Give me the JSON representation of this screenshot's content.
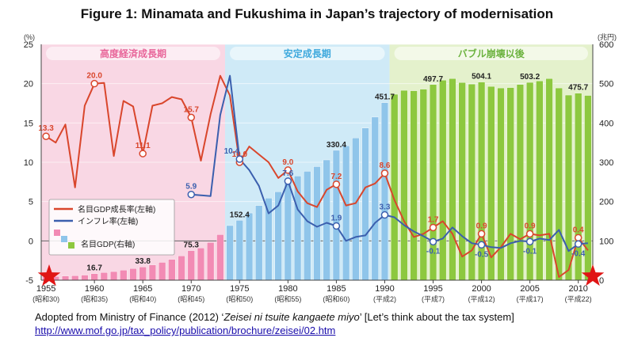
{
  "title": "Figure 1: Minamata and Fukushima in Japan’s trajectory of modernisation",
  "source": {
    "prefix": "Adopted from Ministry of Finance (2012) ‘",
    "italic": "Zeisei ni tsuite kangaete miyo",
    "suffix": "’ [Let’s think about the tax system]",
    "url": "http://www.mof.go.jp/tax_policy/publication/brochure/zeisei/02.htm"
  },
  "colors": {
    "period1_bg": "#f9d7e4",
    "period2_bg": "#cfeaf7",
    "period3_bg": "#e4f1cc",
    "period1_label": "#e8669a",
    "period2_label": "#3fa9dd",
    "period3_label": "#6cb33f",
    "gdp_growth": "#d9462c",
    "inflation": "#3b5fae",
    "bar_pink": "#f28bb4",
    "bar_blue": "#8fc5ea",
    "bar_green": "#8dc83f",
    "star": "#e01515",
    "title": "#111111"
  },
  "chart_data": {
    "type": "line",
    "left_unit": "(%)",
    "right_unit": "(兆円)",
    "ylim_left": [
      -5,
      25
    ],
    "ylim_right": [
      0,
      600
    ],
    "left_ticks": [
      "-5",
      "0",
      "5",
      "10",
      "15",
      "20",
      "25"
    ],
    "right_ticks": [
      "0",
      "100",
      "200",
      "300",
      "400",
      "500",
      "600"
    ],
    "x_ticks": [
      {
        "year": 1955,
        "era": "(昭和30)"
      },
      {
        "year": 1960,
        "era": "(昭和35)"
      },
      {
        "year": 1965,
        "era": "(昭和40)"
      },
      {
        "year": 1970,
        "era": "(昭和45)"
      },
      {
        "year": 1975,
        "era": "(昭和50)"
      },
      {
        "year": 1980,
        "era": "(昭和55)"
      },
      {
        "year": 1985,
        "era": "(昭和60)"
      },
      {
        "year": 1990,
        "era": "(平成2)"
      },
      {
        "year": 1995,
        "era": "(平成7)"
      },
      {
        "year": 2000,
        "era": "(平成12)"
      },
      {
        "year": 2005,
        "era": "(平成17)"
      },
      {
        "year": 2010,
        "era": "(平成22)"
      }
    ],
    "periods": [
      {
        "label": "高度経済成長期",
        "from": 1954.5,
        "to": 1973.5
      },
      {
        "label": "安定成長期",
        "from": 1973.5,
        "to": 1990.5
      },
      {
        "label": "バブル崩壊以後",
        "from": 1990.5,
        "to": 2011.5
      }
    ],
    "legend": {
      "gdp_growth": "名目GDP成長率(左軸)",
      "inflation": "インフレ率(左軸)",
      "gdp": "名目GDP(右軸)"
    },
    "series": [
      {
        "key": "gdp_growth",
        "name": "名目GDP成長率(左軸)",
        "axis": "left",
        "x": [
          1955,
          1956,
          1957,
          1958,
          1959,
          1960,
          1961,
          1962,
          1963,
          1964,
          1965,
          1966,
          1967,
          1968,
          1969,
          1970,
          1971,
          1972,
          1973,
          1974,
          1975,
          1976,
          1977,
          1978,
          1979,
          1980,
          1981,
          1982,
          1983,
          1984,
          1985,
          1986,
          1987,
          1988,
          1989,
          1990,
          1991,
          1992,
          1993,
          1994,
          1995,
          1996,
          1997,
          1998,
          1999,
          2000,
          2001,
          2002,
          2003,
          2004,
          2005,
          2006,
          2007,
          2008,
          2009,
          2010,
          2011
        ],
        "y": [
          13.3,
          12.5,
          14.8,
          6.8,
          17.2,
          20.0,
          20.1,
          10.8,
          17.8,
          17.1,
          11.1,
          17.2,
          17.5,
          18.3,
          18.0,
          15.7,
          10.2,
          16.1,
          21.0,
          18.5,
          10.0,
          12.0,
          11.0,
          10.0,
          8.0,
          9.0,
          6.3,
          4.8,
          4.3,
          6.5,
          7.2,
          4.5,
          4.8,
          6.8,
          7.3,
          8.6,
          5.2,
          2.5,
          0.5,
          0.9,
          1.7,
          2.5,
          0.9,
          -2.0,
          -1.2,
          0.9,
          -2.1,
          -0.8,
          0.9,
          0.2,
          0.9,
          0.7,
          0.9,
          -4.6,
          -3.7,
          0.4,
          -1.2
        ]
      },
      {
        "key": "inflation",
        "name": "インフレ率(左軸)",
        "axis": "left",
        "x": [
          1970,
          1971,
          1972,
          1973,
          1974,
          1975,
          1976,
          1977,
          1978,
          1979,
          1980,
          1981,
          1982,
          1983,
          1984,
          1985,
          1986,
          1987,
          1988,
          1989,
          1990,
          1991,
          1992,
          1993,
          1994,
          1995,
          1996,
          1997,
          1998,
          1999,
          2000,
          2001,
          2002,
          2003,
          2004,
          2005,
          2006,
          2007,
          2008,
          2009,
          2010,
          2011
        ],
        "y": [
          5.9,
          5.8,
          5.7,
          16.0,
          21.0,
          10.4,
          9.0,
          7.0,
          3.5,
          4.5,
          7.6,
          4.0,
          2.5,
          1.8,
          2.3,
          1.9,
          0.0,
          0.5,
          0.7,
          2.3,
          3.3,
          3.0,
          2.0,
          1.2,
          0.6,
          -0.1,
          0.3,
          1.7,
          0.6,
          -0.3,
          -0.5,
          -0.8,
          -0.9,
          -0.3,
          0.0,
          -0.1,
          0.3,
          0.1,
          1.4,
          -1.3,
          -0.4,
          -0.3
        ]
      }
    ],
    "bars": {
      "name": "名目GDP(右軸)",
      "axis": "right",
      "x": [
        1955,
        1956,
        1957,
        1958,
        1959,
        1960,
        1961,
        1962,
        1963,
        1964,
        1965,
        1966,
        1967,
        1968,
        1969,
        1970,
        1971,
        1972,
        1973,
        1974,
        1975,
        1976,
        1977,
        1978,
        1979,
        1980,
        1981,
        1982,
        1983,
        1984,
        1985,
        1986,
        1987,
        1988,
        1989,
        1990,
        1991,
        1992,
        1993,
        1994,
        1995,
        1996,
        1997,
        1998,
        1999,
        2000,
        2001,
        2002,
        2003,
        2004,
        2005,
        2006,
        2007,
        2008,
        2009,
        2010,
        2011
      ],
      "values": [
        8.4,
        9.5,
        10.8,
        11.5,
        13.0,
        16.7,
        19.7,
        22.0,
        25.7,
        29.7,
        33.8,
        39.0,
        45.4,
        53.0,
        62.0,
        75.3,
        82.0,
        96.0,
        116.0,
        139.0,
        152.4,
        171.0,
        190.0,
        209.0,
        225.0,
        248.0,
        265.0,
        277.0,
        289.0,
        306.0,
        330.4,
        342.0,
        362.0,
        387.0,
        415.0,
        451.7,
        473.0,
        483.0,
        482.0,
        486.0,
        497.7,
        509.0,
        513.0,
        503.0,
        499.0,
        504.1,
        493.0,
        489.0,
        490.0,
        498.0,
        503.2,
        507.0,
        513.0,
        489.0,
        471.0,
        475.7,
        470.0
      ]
    },
    "bar_labels": [
      {
        "x": 1960,
        "text": "16.7"
      },
      {
        "x": 1965,
        "text": "33.8"
      },
      {
        "x": 1970,
        "text": "75.3"
      },
      {
        "x": 1975,
        "text": "152.4"
      },
      {
        "x": 1985,
        "text": "330.4"
      },
      {
        "x": 1990,
        "text": "451.7"
      },
      {
        "x": 1995,
        "text": "497.7"
      },
      {
        "x": 2000,
        "text": "504.1"
      },
      {
        "x": 2005,
        "text": "503.2"
      },
      {
        "x": 2010,
        "text": "475.7"
      }
    ],
    "growth_labels": [
      {
        "x": 1955,
        "text": "13.3"
      },
      {
        "x": 1960,
        "text": "20.0"
      },
      {
        "x": 1965,
        "text": "11.1"
      },
      {
        "x": 1970,
        "text": "15.7"
      },
      {
        "x": 1975,
        "text": "10.0"
      },
      {
        "x": 1980,
        "text": "9.0"
      },
      {
        "x": 1985,
        "text": "7.2"
      },
      {
        "x": 1990,
        "text": "8.6"
      },
      {
        "x": 1995,
        "text": "1.7"
      },
      {
        "x": 2000,
        "text": "0.9"
      },
      {
        "x": 2005,
        "text": "0.9"
      },
      {
        "x": 2010,
        "text": "0.4"
      }
    ],
    "inflation_labels": [
      {
        "x": 1970,
        "text": "5.9"
      },
      {
        "x": 1975,
        "text": "10.4"
      },
      {
        "x": 1980,
        "text": "7.6"
      },
      {
        "x": 1985,
        "text": "1.9"
      },
      {
        "x": 1990,
        "text": "3.3"
      },
      {
        "x": 1995,
        "text": "-0.1"
      },
      {
        "x": 2000,
        "text": "-0.5"
      },
      {
        "x": 2005,
        "text": "-0.1"
      },
      {
        "x": 2010,
        "text": "-0.4"
      }
    ],
    "markers": [
      {
        "x": 1955,
        "shape": "star"
      },
      {
        "x": 2011,
        "shape": "star"
      }
    ]
  }
}
